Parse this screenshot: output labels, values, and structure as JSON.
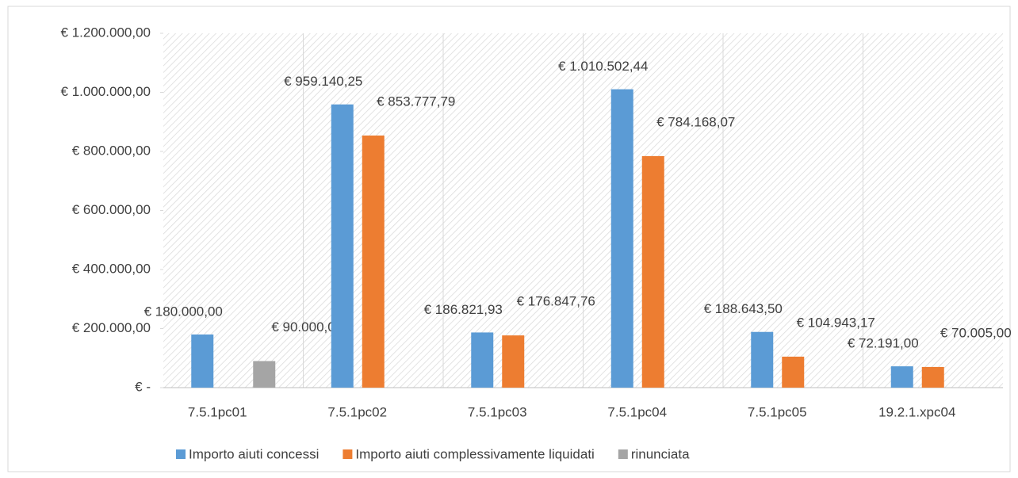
{
  "chart_data": {
    "type": "bar",
    "categories": [
      "7.5.1pc01",
      "7.5.1pc02",
      "7.5.1pc03",
      "7.5.1pc04",
      "7.5.1pc05",
      "19.2.1.xpc04"
    ],
    "series": [
      {
        "name": "Importo aiuti concessi",
        "color": "#5b9bd5",
        "values": [
          180000,
          959140.25,
          186821.93,
          1010502.44,
          188643.5,
          72191
        ],
        "value_labels": [
          "€ 180.000,00",
          "€ 959.140,25",
          "€ 186.821,93",
          "€ 1.010.502,44",
          "€ 188.643,50",
          "€ 72.191,00"
        ]
      },
      {
        "name": "Importo aiuti complessivamente liquidati",
        "color": "#ed7d31",
        "values": [
          null,
          853777.79,
          176847.76,
          784168.07,
          104943.17,
          70005
        ],
        "value_labels": [
          null,
          "€ 853.777,79",
          "€ 176.847,76",
          "€ 784.168,07",
          "€ 104.943,17",
          "€ 70.005,00"
        ]
      },
      {
        "name": "rinunciata",
        "color": "#a5a5a5",
        "values": [
          90000,
          null,
          null,
          null,
          null,
          null
        ],
        "value_labels": [
          "€ 90.000,00",
          null,
          null,
          null,
          null,
          null
        ]
      }
    ],
    "ylim": [
      0,
      1200000
    ],
    "yticks": [
      {
        "value": 0,
        "label": "€ -"
      },
      {
        "value": 200000,
        "label": "€ 200.000,00"
      },
      {
        "value": 400000,
        "label": "€ 400.000,00"
      },
      {
        "value": 600000,
        "label": "€ 600.000,00"
      },
      {
        "value": 800000,
        "label": "€ 800.000,00"
      },
      {
        "value": 1000000,
        "label": "€ 1.000.000,00"
      },
      {
        "value": 1200000,
        "label": "€ 1.200.000,00"
      }
    ],
    "legend": "bottom"
  }
}
